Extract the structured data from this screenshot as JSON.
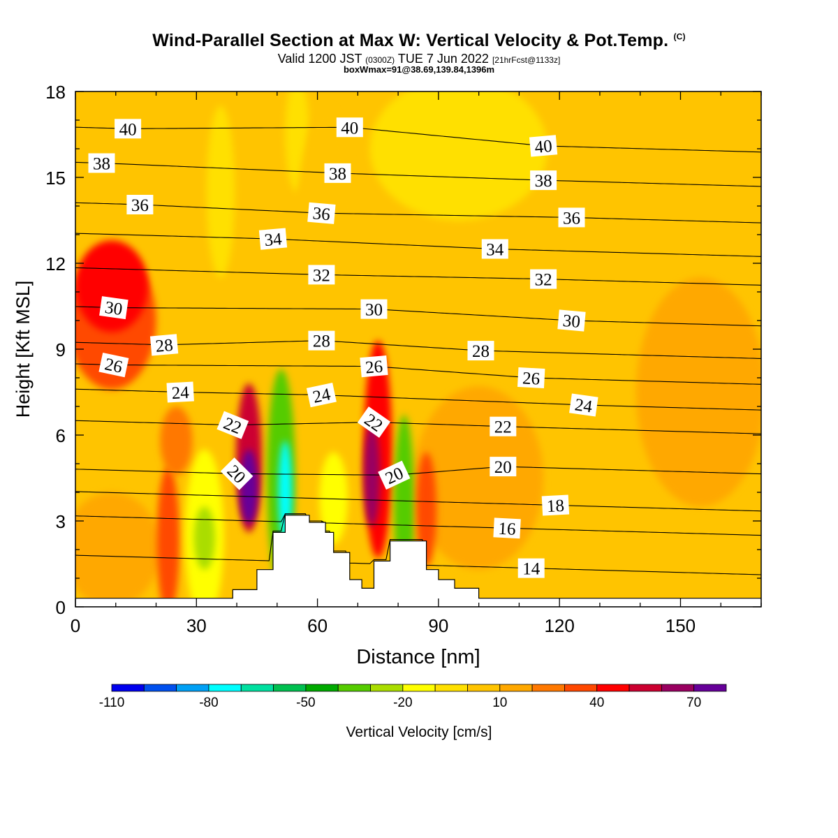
{
  "header": {
    "title": "Wind-Parallel Section at Max W: Vertical Velocity & Pot.Temp.",
    "copyright": "(C)",
    "valid_prefix": "Valid 1200 JST",
    "valid_utc": "(0300Z)",
    "valid_date": "TUE 7 Jun 2022",
    "forecast": "[21hrFcst@1133z]",
    "box_info": "boxWmax=91@38.69,139.84,1396m"
  },
  "colorbar": {
    "label": "Vertical Velocity [cm/s]",
    "tick_labels": [
      "-110",
      "-80",
      "-50",
      "-20",
      "10",
      "40",
      "70"
    ],
    "colors": [
      "#0000ee",
      "#0050ee",
      "#00a0f5",
      "#00ffff",
      "#00e0a0",
      "#00c050",
      "#00aa00",
      "#55cc00",
      "#aadd00",
      "#ffff00",
      "#ffe000",
      "#ffc400",
      "#ffa800",
      "#ff7800",
      "#ff4800",
      "#ff0000",
      "#cc0030",
      "#990060",
      "#660099"
    ]
  },
  "chart_data": {
    "type": "contour",
    "xlabel": "Distance [nm]",
    "ylabel": "Height [Kft MSL]",
    "xlim": [
      0,
      170
    ],
    "ylim": [
      0,
      18
    ],
    "xticks": [
      0,
      30,
      60,
      90,
      120,
      150
    ],
    "yticks": [
      0,
      3,
      6,
      9,
      12,
      15,
      18
    ],
    "terrain": [
      [
        0,
        0.3
      ],
      [
        39,
        0.3
      ],
      [
        39,
        0.6
      ],
      [
        45,
        0.6
      ],
      [
        45,
        1.3
      ],
      [
        49,
        1.3
      ],
      [
        49,
        2.6
      ],
      [
        52,
        2.6
      ],
      [
        52,
        3.2
      ],
      [
        58,
        3.2
      ],
      [
        58,
        2.95
      ],
      [
        62,
        2.95
      ],
      [
        62,
        2.6
      ],
      [
        64,
        2.6
      ],
      [
        64,
        1.9
      ],
      [
        68,
        1.9
      ],
      [
        68,
        0.95
      ],
      [
        71,
        0.95
      ],
      [
        71,
        0.65
      ],
      [
        74,
        0.65
      ],
      [
        74,
        1.6
      ],
      [
        78,
        1.6
      ],
      [
        78,
        2.3
      ],
      [
        87,
        2.3
      ],
      [
        87,
        1.3
      ],
      [
        90,
        1.3
      ],
      [
        90,
        0.95
      ],
      [
        94,
        0.95
      ],
      [
        94,
        0.65
      ],
      [
        100,
        0.65
      ],
      [
        100,
        0.3
      ],
      [
        170,
        0.3
      ]
    ],
    "theta_labels": [
      {
        "text": "40",
        "x": 13,
        "y": 16.7,
        "rot": 0
      },
      {
        "text": "40",
        "x": 68,
        "y": 16.75,
        "rot": 0
      },
      {
        "text": "40",
        "x": 116,
        "y": 16.1,
        "rot": -5
      },
      {
        "text": "38",
        "x": 6.5,
        "y": 15.5,
        "rot": 0
      },
      {
        "text": "38",
        "x": 65,
        "y": 15.15,
        "rot": 0
      },
      {
        "text": "38",
        "x": 116,
        "y": 14.9,
        "rot": 0
      },
      {
        "text": "36",
        "x": 16,
        "y": 14.05,
        "rot": 0
      },
      {
        "text": "36",
        "x": 61,
        "y": 13.75,
        "rot": 5
      },
      {
        "text": "36",
        "x": 123,
        "y": 13.6,
        "rot": 0
      },
      {
        "text": "34",
        "x": 49,
        "y": 12.85,
        "rot": -5
      },
      {
        "text": "34",
        "x": 104,
        "y": 12.5,
        "rot": 0
      },
      {
        "text": "32",
        "x": 61,
        "y": 11.6,
        "rot": 0
      },
      {
        "text": "32",
        "x": 116,
        "y": 11.45,
        "rot": 0
      },
      {
        "text": "30",
        "x": 9.5,
        "y": 10.45,
        "rot": 8
      },
      {
        "text": "30",
        "x": 74,
        "y": 10.4,
        "rot": 0
      },
      {
        "text": "30",
        "x": 123,
        "y": 10.0,
        "rot": 5
      },
      {
        "text": "28",
        "x": 22,
        "y": 9.15,
        "rot": -5
      },
      {
        "text": "28",
        "x": 61,
        "y": 9.3,
        "rot": 0
      },
      {
        "text": "28",
        "x": 100.5,
        "y": 8.95,
        "rot": 0
      },
      {
        "text": "26",
        "x": 9.5,
        "y": 8.45,
        "rot": 12
      },
      {
        "text": "26",
        "x": 74,
        "y": 8.4,
        "rot": -5
      },
      {
        "text": "26",
        "x": 113,
        "y": 8.0,
        "rot": 3
      },
      {
        "text": "24",
        "x": 26,
        "y": 7.5,
        "rot": -3
      },
      {
        "text": "24",
        "x": 61,
        "y": 7.4,
        "rot": -12
      },
      {
        "text": "24",
        "x": 126,
        "y": 7.05,
        "rot": 8
      },
      {
        "text": "22",
        "x": 39,
        "y": 6.35,
        "rot": 22
      },
      {
        "text": "22",
        "x": 74,
        "y": 6.45,
        "rot": 35
      },
      {
        "text": "22",
        "x": 106,
        "y": 6.3,
        "rot": 0
      },
      {
        "text": "20",
        "x": 40,
        "y": 4.65,
        "rot": 45
      },
      {
        "text": "20",
        "x": 79,
        "y": 4.6,
        "rot": -25
      },
      {
        "text": "20",
        "x": 106,
        "y": 4.9,
        "rot": 0
      },
      {
        "text": "18",
        "x": 119,
        "y": 3.55,
        "rot": -3
      },
      {
        "text": "16",
        "x": 107,
        "y": 2.75,
        "rot": 3
      },
      {
        "text": "14",
        "x": 113,
        "y": 1.35,
        "rot": 0
      }
    ],
    "w_blobs": [
      {
        "x": 9,
        "y": 10.0,
        "rx": 11,
        "ry": 2.4,
        "w": 35
      },
      {
        "x": 9,
        "y": 11.2,
        "rx": 9,
        "ry": 1.6,
        "w": 40
      },
      {
        "x": 36,
        "y": 14.5,
        "rx": 3.5,
        "ry": 3.0,
        "w": -10
      },
      {
        "x": 55,
        "y": 16.5,
        "rx": 3,
        "ry": 2.0,
        "w": -8
      },
      {
        "x": 62,
        "y": 9.5,
        "rx": 9,
        "ry": 8.0,
        "w": 3
      },
      {
        "x": 95,
        "y": 16.0,
        "rx": 22,
        "ry": 2.5,
        "w": -10
      },
      {
        "x": 155,
        "y": 7.5,
        "rx": 16,
        "ry": 4.0,
        "w": 15
      },
      {
        "x": 100,
        "y": 4.5,
        "rx": 16,
        "ry": 3.2,
        "w": 15
      },
      {
        "x": 9,
        "y": 2.0,
        "rx": 12,
        "ry": 2.0,
        "w": 12
      },
      {
        "x": 23,
        "y": 2.3,
        "rx": 2.8,
        "ry": 2.6,
        "w": 35
      },
      {
        "x": 32,
        "y": 2.5,
        "rx": 4.8,
        "ry": 3.0,
        "w": -15
      },
      {
        "x": 32,
        "y": 2.4,
        "rx": 2.6,
        "ry": 1.1,
        "w": -30
      },
      {
        "x": 25,
        "y": 5.8,
        "rx": 4,
        "ry": 1.2,
        "w": 25
      },
      {
        "x": 43,
        "y": 5.2,
        "rx": 3.2,
        "ry": 2.6,
        "w": 55
      },
      {
        "x": 43,
        "y": 4.2,
        "rx": 2.2,
        "ry": 1.3,
        "w": 80
      },
      {
        "x": 51,
        "y": 4.5,
        "rx": 3.5,
        "ry": 3.8,
        "w": -35
      },
      {
        "x": 52,
        "y": 4.0,
        "rx": 1.7,
        "ry": 1.8,
        "w": -75
      },
      {
        "x": 64,
        "y": 3.8,
        "rx": 3.5,
        "ry": 1.6,
        "w": -15
      },
      {
        "x": 75,
        "y": 5.5,
        "rx": 3.5,
        "ry": 3.8,
        "w": 45
      },
      {
        "x": 73.5,
        "y": 4.6,
        "rx": 2.0,
        "ry": 1.8,
        "w": 60
      },
      {
        "x": 81.5,
        "y": 3.5,
        "rx": 2.5,
        "ry": 3.2,
        "w": -35
      },
      {
        "x": 87,
        "y": 3.4,
        "rx": 2.5,
        "ry": 2.0,
        "w": 30
      }
    ]
  }
}
